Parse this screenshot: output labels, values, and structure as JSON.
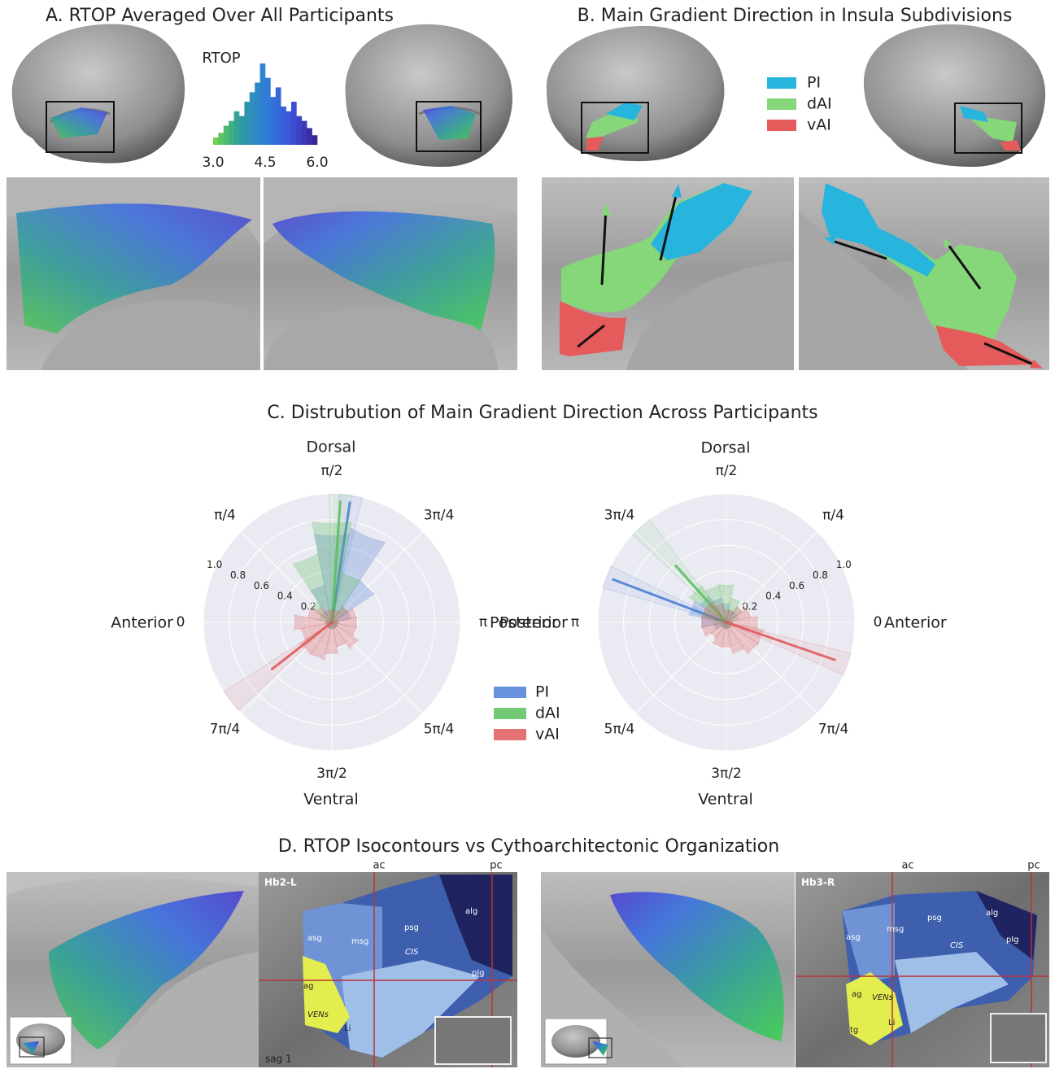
{
  "figure": {
    "panel_a": {
      "title": "A. RTOP Averaged Over All Participants"
    },
    "panel_b": {
      "title": "B. Main Gradient Direction in Insula Subdivisions",
      "legend": [
        "PI",
        "dAI",
        "vAI"
      ],
      "legend_colors": [
        "#27b4dd",
        "#86d67a",
        "#e55a5a"
      ]
    },
    "panel_c": {
      "title": "C. Distrubution of Main Gradient Direction Across Participants",
      "left": {
        "top": "Dorsal",
        "bottom": "Ventral",
        "left": "Anterior",
        "right": "Posterior"
      },
      "right": {
        "top": "Dorsal",
        "bottom": "Ventral",
        "left": "Posterior",
        "right": "Anterior"
      }
    },
    "panel_d": {
      "title": "D. RTOP Isocontours vs Cythoarchitectonic Organization",
      "left_labels": [
        "Hb2-L",
        "ac",
        "pc",
        "alg",
        "psg",
        "asg",
        "msg",
        "CIS",
        "plg",
        "ag",
        "VENs",
        "Li",
        "sag 1"
      ],
      "right_labels": [
        "Hb3-R",
        "ac",
        "pc",
        "psg",
        "alg",
        "msg",
        "asg",
        "CIS",
        "plg",
        "ag",
        "VENs",
        "Li",
        "tg"
      ]
    }
  },
  "chart_data": [
    {
      "type": "histogram",
      "title": "RTOP",
      "bins": [
        3.0,
        3.15,
        3.3,
        3.45,
        3.6,
        3.75,
        3.9,
        4.05,
        4.2,
        4.35,
        4.5,
        4.65,
        4.8,
        4.95,
        5.1,
        5.25,
        5.4,
        5.55,
        5.7,
        5.85,
        6.0
      ],
      "values": [
        3,
        5,
        8,
        10,
        14,
        12,
        18,
        22,
        26,
        34,
        28,
        20,
        24,
        16,
        14,
        18,
        12,
        10,
        7,
        4
      ],
      "colormap": [
        "#6fd84a",
        "#2e9c9c",
        "#2f7fd8",
        "#3b52d8",
        "#3a1f8f"
      ],
      "xlim": [
        3.0,
        6.0
      ],
      "xticks": [
        {
          "value": 3.0,
          "label": "3.0"
        },
        {
          "value": 4.5,
          "label": "4.5"
        },
        {
          "value": 6.0,
          "label": "6.0"
        }
      ]
    },
    {
      "type": "polar",
      "theta_zero": "west",
      "theta_direction": "clockwise",
      "x": [
        0,
        0.3927,
        0.7854,
        1.1781,
        1.5708,
        1.9635,
        2.3562,
        2.7489,
        3.1416,
        3.5343,
        3.927,
        4.3197,
        4.7124,
        5.1051,
        5.4978,
        5.8905
      ],
      "series": [
        {
          "name": "PI",
          "color": "#4a7fd4",
          "values": [
            0.05,
            0.05,
            0.1,
            0.3,
            0.7,
            0.75,
            0.4,
            0.15,
            0.05,
            0.05,
            0.05,
            0.05,
            0.05,
            0.05,
            0.05,
            0.05
          ],
          "mean_angle": 1.72,
          "mean_length": 0.95
        },
        {
          "name": "dAI",
          "color": "#5cc05c",
          "values": [
            0.05,
            0.1,
            0.2,
            0.55,
            0.8,
            0.4,
            0.15,
            0.05,
            0.05,
            0.05,
            0.05,
            0.05,
            0.05,
            0.05,
            0.05,
            0.05
          ],
          "mean_angle": 1.64,
          "mean_length": 0.95
        },
        {
          "name": "vAI",
          "color": "#e05a5a",
          "values": [
            0.3,
            0.2,
            0.15,
            0.1,
            0.1,
            0.1,
            0.15,
            0.2,
            0.2,
            0.2,
            0.25,
            0.2,
            0.25,
            0.3,
            0.3,
            0.25
          ],
          "mean_angle": 5.62,
          "mean_length": 0.6
        }
      ],
      "ylim": [
        0,
        1.0
      ],
      "yticks": [
        0.2,
        0.4,
        0.6,
        0.8,
        {
          "value": 1.0,
          "label": "1.0"
        }
      ],
      "xticks": [
        0,
        {
          "value": 0.7854,
          "label": "π/4"
        },
        {
          "value": 1.5708,
          "label": "π/2"
        },
        {
          "value": 2.3562,
          "label": "3π/4"
        },
        {
          "value": 3.1416,
          "label": "π"
        },
        {
          "value": 3.927,
          "label": "5π/4"
        },
        {
          "value": 4.7124,
          "label": "3π/2"
        },
        {
          "value": 5.4978,
          "label": "7π/4"
        }
      ]
    },
    {
      "type": "polar",
      "theta_zero": "east",
      "theta_direction": "counterclockwise",
      "x": [
        0,
        0.3927,
        0.7854,
        1.1781,
        1.5708,
        1.9635,
        2.3562,
        2.7489,
        3.1416,
        3.5343,
        3.927,
        4.3197,
        4.7124,
        5.1051,
        5.4978,
        5.8905
      ],
      "series": [
        {
          "name": "PI",
          "color": "#4a7fd4",
          "values": [
            0.05,
            0.05,
            0.1,
            0.1,
            0.15,
            0.2,
            0.25,
            0.3,
            0.2,
            0.1,
            0.05,
            0.05,
            0.05,
            0.05,
            0.05,
            0.05
          ],
          "mean_angle": 2.78,
          "mean_length": 0.95
        },
        {
          "name": "dAI",
          "color": "#5cc05c",
          "values": [
            0.05,
            0.1,
            0.15,
            0.2,
            0.3,
            0.3,
            0.35,
            0.2,
            0.1,
            0.05,
            0.05,
            0.05,
            0.05,
            0.05,
            0.05,
            0.05
          ],
          "mean_angle": 2.3,
          "mean_length": 0.6
        },
        {
          "name": "vAI",
          "color": "#e05a5a",
          "values": [
            0.25,
            0.2,
            0.15,
            0.1,
            0.1,
            0.15,
            0.2,
            0.2,
            0.2,
            0.2,
            0.15,
            0.2,
            0.2,
            0.25,
            0.3,
            0.3
          ],
          "mean_angle": 5.95,
          "mean_length": 0.9
        }
      ],
      "ylim": [
        0,
        1.0
      ],
      "yticks": [
        0.2,
        0.4,
        0.6,
        0.8,
        {
          "value": 1.0,
          "label": "1.0"
        }
      ],
      "xticks": [
        0,
        {
          "value": 0.7854,
          "label": "π/4"
        },
        {
          "value": 1.5708,
          "label": "π/2"
        },
        {
          "value": 2.3562,
          "label": "3π/4"
        },
        {
          "value": 3.1416,
          "label": "π"
        },
        {
          "value": 3.927,
          "label": "5π/4"
        },
        {
          "value": 4.7124,
          "label": "3π/2"
        },
        {
          "value": 5.4978,
          "label": "7π/4"
        }
      ]
    }
  ]
}
